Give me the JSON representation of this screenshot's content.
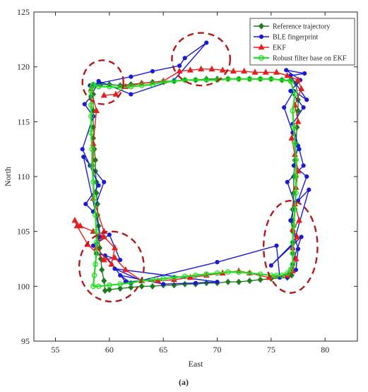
{
  "chart_data": {
    "type": "line",
    "caption": "(a)",
    "xlabel": "East",
    "ylabel": "North",
    "xlim": [
      53,
      83
    ],
    "ylim": [
      95,
      125
    ],
    "xticks": [
      55,
      60,
      65,
      70,
      75,
      80
    ],
    "yticks": [
      95,
      100,
      105,
      110,
      115,
      120,
      125
    ],
    "grid": false,
    "legend_position": "top-right",
    "series": [
      {
        "name": "Reference trajectory",
        "color": "#1f7a1f",
        "marker": "diamond",
        "x": [
          58.5,
          59.2,
          60,
          61,
          62,
          63,
          64,
          65,
          66,
          67,
          68,
          69,
          70,
          71,
          72,
          73,
          74,
          75,
          76,
          76.8,
          77.3,
          77.5,
          77.5,
          77.4,
          77.3,
          77.2,
          77.1,
          77.1,
          77,
          77,
          77,
          77,
          77,
          77,
          76.9,
          76.5,
          75,
          74,
          73,
          72,
          71,
          70,
          69,
          68,
          67,
          66,
          65,
          64,
          63,
          62,
          61,
          60,
          59.6,
          59.5,
          59.3,
          59.2,
          59.1,
          59,
          59,
          58.9,
          58.9,
          58.8,
          58.8,
          58.7,
          58.7,
          58.6,
          58.5,
          58.5,
          58.5,
          58.5
        ],
        "y": [
          118.3,
          118.4,
          118.4,
          118.3,
          118.4,
          118.5,
          118.6,
          118.7,
          118.7,
          118.8,
          118.8,
          118.9,
          118.9,
          118.9,
          118.9,
          118.9,
          118.9,
          118.9,
          118.8,
          118.8,
          118.5,
          117,
          116,
          114.5,
          113,
          111.5,
          110,
          108.5,
          107,
          106,
          105,
          104,
          103,
          102,
          101,
          100.8,
          100.7,
          100.6,
          100.5,
          100.4,
          100.4,
          100.3,
          100.3,
          100.2,
          100.2,
          100.1,
          100.1,
          100,
          100,
          99.9,
          99.8,
          99.7,
          99.6,
          100.5,
          101.5,
          102.5,
          103.5,
          104.5,
          105.5,
          106.5,
          107.5,
          108.5,
          109.5,
          110.5,
          111.5,
          112.5,
          113.5,
          114.5,
          116,
          117.5
        ]
      },
      {
        "name": "BLE fingerprint",
        "color": "#1a1ad6",
        "marker": "circle",
        "x": [
          58.2,
          59,
          62,
          64,
          66.5,
          67,
          69,
          66,
          62,
          59,
          58.3,
          57.7,
          58.5,
          57.5,
          58.2,
          59,
          57.8,
          58.5,
          59.5,
          57.6,
          59.2,
          58.5,
          60,
          61,
          58.8,
          59.6,
          61.5,
          63,
          60.5,
          70,
          68,
          65,
          61,
          62,
          70,
          75.5,
          75.8,
          77.3,
          77.5,
          76.8,
          77.2,
          76.5,
          78,
          77.6,
          77,
          76.2,
          77.1,
          78.3,
          76.8,
          78.1,
          76.4,
          77.7,
          76.8,
          78,
          77,
          77.5,
          77.1,
          78.3,
          77.5,
          78.5,
          77.1,
          75,
          77.8,
          76.5
        ],
        "y": [
          118.3,
          118.5,
          119.1,
          119.6,
          120.1,
          120.8,
          122.2,
          118.8,
          117.5,
          118.7,
          117.3,
          116.6,
          115.5,
          112.5,
          111,
          109.2,
          107.5,
          106.8,
          109.5,
          111.8,
          104.5,
          103.7,
          104.7,
          102.4,
          103,
          102.8,
          100.4,
          100.5,
          101.6,
          100.4,
          100.3,
          100.2,
          101,
          100.3,
          102.2,
          103.7,
          100.8,
          101.5,
          103.4,
          106,
          107.5,
          109.5,
          111,
          112.5,
          114,
          116.3,
          117.8,
          117,
          119.2,
          119.4,
          119.7,
          118.8,
          117.8,
          116.3,
          114.8,
          112.8,
          111,
          110,
          107.8,
          108.8,
          104,
          101.9,
          104.5,
          100.8
        ]
      },
      {
        "name": "EKF",
        "color": "#e61e1e",
        "marker": "triangle",
        "x": [
          59.5,
          60.6,
          61.5,
          63,
          65,
          66.5,
          67.5,
          68.5,
          69.5,
          70.5,
          71.5,
          72.5,
          73.5,
          74.5,
          75.5,
          76.5,
          77.5,
          77.8,
          77.2,
          77.5,
          76.9,
          77.2,
          77.5,
          77.3,
          77.2,
          77.6,
          77,
          77.4,
          77,
          77.3,
          77,
          76.5,
          74.8,
          73,
          72,
          70.5,
          69,
          67.5,
          66,
          64.5,
          63,
          61.5,
          60.5,
          59.5,
          58,
          57,
          56.8,
          57.3,
          58.5,
          59.5,
          60.5,
          60.2,
          58.8,
          59.5,
          58.5,
          58.5,
          58.8,
          58.3
        ],
        "y": [
          117.4,
          117.5,
          118.2,
          118.5,
          118.7,
          119.6,
          119.7,
          119.8,
          119.8,
          119.7,
          119.6,
          119.6,
          119.5,
          119.5,
          119.5,
          119.2,
          118.8,
          118,
          116.5,
          115,
          113.5,
          112,
          110.5,
          109,
          107.5,
          106,
          105.2,
          104.5,
          103.5,
          102.5,
          101.4,
          101,
          100.8,
          101.2,
          101.4,
          101.2,
          101,
          100.8,
          100.6,
          100.5,
          100.5,
          101.5,
          102.6,
          102.4,
          103.8,
          105.5,
          106,
          105.5,
          105,
          104.5,
          103.5,
          102,
          103.5,
          105,
          108,
          113,
          116,
          118
        ]
      },
      {
        "name": "Robust filter base on EKF",
        "color": "#22dd22",
        "marker": "circle-open",
        "x": [
          58.5,
          59,
          60,
          61,
          62,
          63,
          64,
          65,
          66,
          67,
          68,
          69,
          70,
          71,
          72,
          73,
          74,
          75,
          76,
          76.8,
          77.2,
          77,
          77.1,
          77.2,
          77.3,
          77.3,
          77.3,
          77.2,
          77.1,
          77,
          77,
          77,
          76.8,
          76.5,
          76,
          75.5,
          75,
          74,
          73,
          72,
          71,
          70,
          69,
          68,
          67,
          66,
          65,
          64,
          63,
          62,
          61,
          60,
          59,
          58.5,
          58.6,
          58.7,
          58.8,
          58.8,
          58.8,
          58.7,
          58.6,
          58.5,
          58.4,
          58.4,
          58.3,
          58.3,
          58.3,
          58.3,
          58.3,
          58.4
        ],
        "y": [
          118.4,
          118.2,
          118.2,
          118.1,
          118.2,
          118.3,
          118.4,
          118.6,
          118.7,
          118.8,
          118.8,
          118.8,
          118.8,
          118.9,
          118.9,
          118.9,
          118.9,
          118.9,
          118.8,
          118.7,
          117.5,
          116,
          114.5,
          113,
          111.5,
          110,
          108.5,
          107,
          105.5,
          104,
          103,
          102,
          101.5,
          101.2,
          101,
          101,
          101,
          101.1,
          101.2,
          101.3,
          101.3,
          101.2,
          101.1,
          101,
          100.9,
          100.8,
          100.7,
          100.6,
          100.5,
          100.3,
          100.2,
          100.1,
          100,
          100,
          101,
          102,
          103,
          104,
          105,
          106.5,
          108,
          109.5,
          111,
          112.5,
          114,
          115.5,
          116.5,
          117.3,
          117.8,
          118.2
        ]
      }
    ],
    "highlighted_regions": [
      {
        "cx": 59.4,
        "cy": 118.6,
        "rx": 1.9,
        "ry": 2.0
      },
      {
        "cx": 68.5,
        "cy": 120.7,
        "rx": 2.7,
        "ry": 2.4
      },
      {
        "cx": 60.2,
        "cy": 101.8,
        "rx": 3.0,
        "ry": 3.2
      },
      {
        "cx": 76.8,
        "cy": 103.6,
        "rx": 2.5,
        "ry": 4.2
      }
    ]
  }
}
